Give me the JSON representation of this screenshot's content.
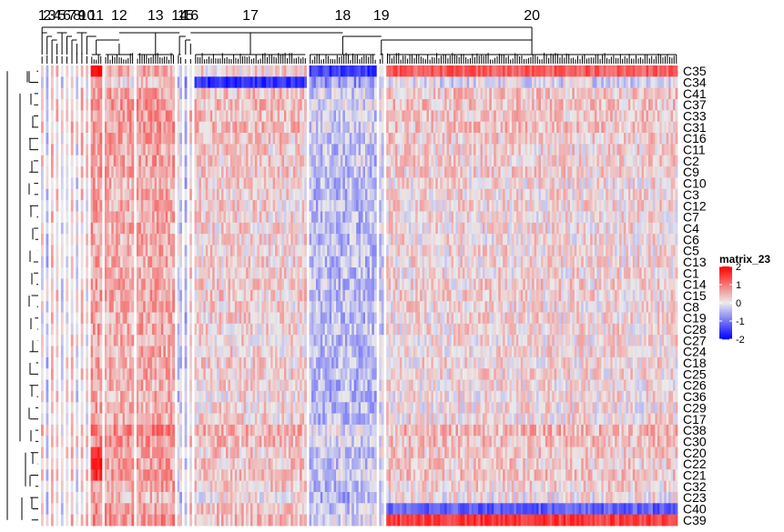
{
  "chart_data": {
    "type": "heatmap",
    "title": "",
    "legend": {
      "title": "matrix_23",
      "ticks": [
        2,
        1,
        0,
        -1,
        -2
      ],
      "range": [
        -2,
        2
      ],
      "colors": {
        "low": "#0000ff",
        "mid": "#ebebeb",
        "high": "#ff0000"
      },
      "placement": "right"
    },
    "column_slices": [
      {
        "label": "1",
        "n": 1
      },
      {
        "label": "2",
        "n": 1
      },
      {
        "label": "3",
        "n": 1
      },
      {
        "label": "4",
        "n": 1
      },
      {
        "label": "5",
        "n": 1
      },
      {
        "label": "6",
        "n": 1
      },
      {
        "label": "7",
        "n": 1
      },
      {
        "label": "8",
        "n": 1
      },
      {
        "label": "9",
        "n": 1
      },
      {
        "label": "10",
        "n": 1
      },
      {
        "label": "11",
        "n": 5
      },
      {
        "label": "12",
        "n": 13
      },
      {
        "label": "13",
        "n": 17
      },
      {
        "label": "14",
        "n": 2
      },
      {
        "label": "15",
        "n": 1
      },
      {
        "label": "16",
        "n": 1
      },
      {
        "label": "17",
        "n": 50
      },
      {
        "label": "18",
        "n": 30
      },
      {
        "label": "19",
        "n": 2
      },
      {
        "label": "20",
        "n": 130
      }
    ],
    "rows": [
      "C35",
      "C34",
      "C41",
      "C37",
      "C33",
      "C31",
      "C16",
      "C11",
      "C2",
      "C9",
      "C10",
      "C3",
      "C12",
      "C7",
      "C4",
      "C6",
      "C5",
      "C13",
      "C1",
      "C14",
      "C15",
      "C8",
      "C19",
      "C28",
      "C27",
      "C24",
      "C18",
      "C25",
      "C26",
      "C36",
      "C29",
      "C17",
      "C38",
      "C30",
      "C20",
      "C22",
      "C21",
      "C32",
      "C23",
      "C40",
      "C39"
    ],
    "row_means": [
      0.1,
      -0.2,
      0.25,
      0.3,
      0.25,
      0.3,
      0.2,
      0.15,
      0.15,
      0.15,
      0.1,
      0.1,
      0.1,
      0.1,
      0.1,
      0.1,
      0.1,
      0.1,
      0.1,
      0.15,
      0.15,
      0.1,
      0.1,
      0.1,
      0.1,
      0.1,
      0.1,
      0.1,
      0.05,
      0.05,
      0.05,
      0.1,
      0.4,
      0.3,
      0.2,
      0.2,
      0.25,
      0.15,
      0.0,
      0.2,
      0.3
    ],
    "slice_bias": [
      0,
      -0.4,
      0.2,
      0.1,
      -0.3,
      0,
      0.1,
      -0.2,
      0.2,
      0,
      0.5,
      0.4,
      0.45,
      -0.3,
      -0.5,
      0.1,
      0.1,
      -0.5,
      -0.3,
      0.05
    ],
    "emphasis": [
      {
        "row": "C35",
        "slice": "11",
        "value": 2
      },
      {
        "row": "C35",
        "slice": "18",
        "value": -1.5
      },
      {
        "row": "C35",
        "slice": "20",
        "value": 1.2
      },
      {
        "row": "C34",
        "slice": "17",
        "value": -1.6
      },
      {
        "row": "C20",
        "slice": "11",
        "value": 1.8
      },
      {
        "row": "C22",
        "slice": "11",
        "value": 1.8
      },
      {
        "row": "C21",
        "slice": "11",
        "value": 1.6
      },
      {
        "row": "C40",
        "slice": "20",
        "value": -1.2
      },
      {
        "row": "C39",
        "slice": "20",
        "value": 1.5
      }
    ],
    "grid": false
  }
}
